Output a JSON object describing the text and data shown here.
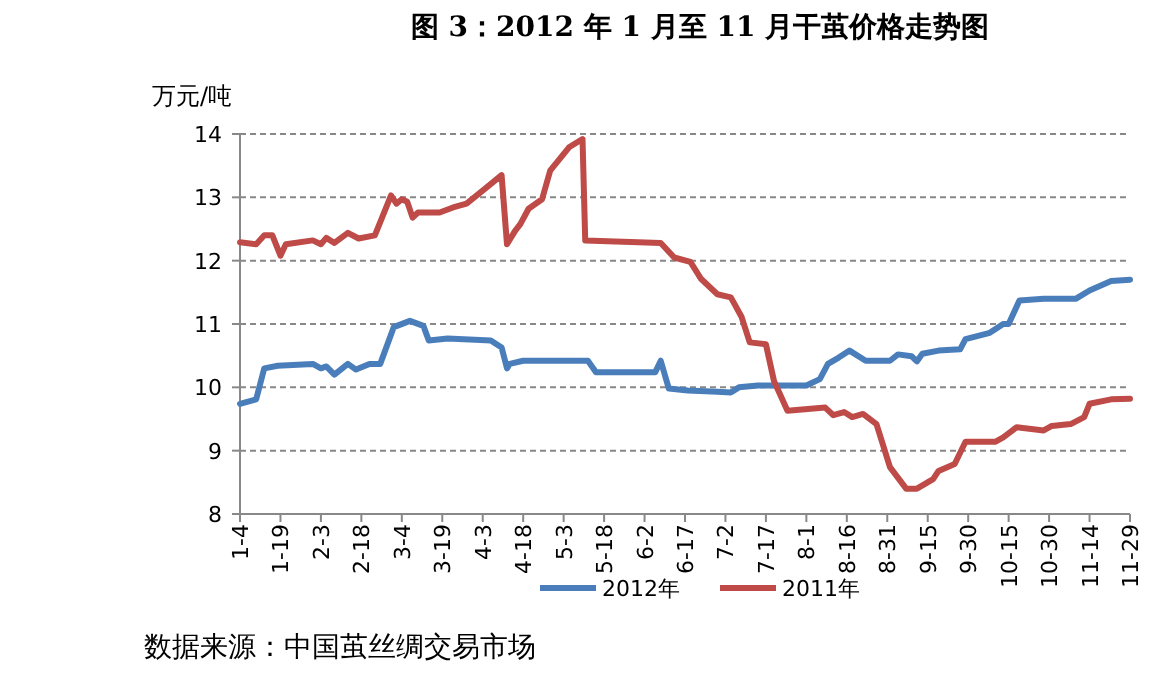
{
  "chart_data": {
    "type": "line",
    "title": "图 3：2012 年 1 月至 11 月干茧价格走势图",
    "ylabel": "万元/吨",
    "annotations": [
      "数据来源：中国茧丝绸交易市场"
    ],
    "xlim": [
      "--01-04",
      "--11-29"
    ],
    "ylim": [
      8,
      14
    ],
    "yticks": [
      8,
      9,
      10,
      11,
      12,
      13,
      14
    ],
    "xticks": [
      {
        "value": "--01-04",
        "label": "1-4"
      },
      {
        "value": "--01-19",
        "label": "1-19"
      },
      {
        "value": "--02-03",
        "label": "2-3"
      },
      {
        "value": "--02-18",
        "label": "2-18"
      },
      {
        "value": "--03-04",
        "label": "3-4"
      },
      {
        "value": "--03-19",
        "label": "3-19"
      },
      {
        "value": "--04-03",
        "label": "4-3"
      },
      {
        "value": "--04-18",
        "label": "4-18"
      },
      {
        "value": "--05-03",
        "label": "5-3"
      },
      {
        "value": "--05-18",
        "label": "5-18"
      },
      {
        "value": "--06-02",
        "label": "6-2"
      },
      {
        "value": "--06-17",
        "label": "6-17"
      },
      {
        "value": "--07-02",
        "label": "7-2"
      },
      {
        "value": "--07-17",
        "label": "7-17"
      },
      {
        "value": "--08-01",
        "label": "8-1"
      },
      {
        "value": "--08-16",
        "label": "8-16"
      },
      {
        "value": "--08-31",
        "label": "8-31"
      },
      {
        "value": "--09-15",
        "label": "9-15"
      },
      {
        "value": "--09-30",
        "label": "9-30"
      },
      {
        "value": "--10-15",
        "label": "10-15"
      },
      {
        "value": "--10-30",
        "label": "10-30"
      },
      {
        "value": "--11-14",
        "label": "11-14"
      },
      {
        "value": "--11-29",
        "label": "11-29"
      }
    ],
    "grid": "y",
    "legend": "bottom",
    "series": [
      {
        "name": "2012年",
        "color": "#4a7ebb",
        "x": [
          "--01-04",
          "--01-10",
          "--01-13",
          "--01-18",
          "--01-31",
          "--02-03",
          "--02-05",
          "--02-08",
          "--02-13",
          "--02-16",
          "--02-21",
          "--02-25",
          "--03-01",
          "--03-07",
          "--03-12",
          "--03-14",
          "--03-21",
          "--04-06",
          "--04-10",
          "--04-12",
          "--04-13",
          "--04-18",
          "--05-12",
          "--05-15",
          "--06-06",
          "--06-08",
          "--06-11",
          "--06-18",
          "--06-29",
          "--07-04",
          "--07-07",
          "--07-14",
          "--08-01",
          "--08-06",
          "--08-09",
          "--08-13",
          "--08-17",
          "--08-23",
          "--09-01",
          "--09-04",
          "--09-09",
          "--09-11",
          "--09-13",
          "--09-19",
          "--09-27",
          "--09-29",
          "--10-08",
          "--10-13",
          "--10-15",
          "--10-19",
          "--10-28",
          "--11-09",
          "--11-14",
          "--11-22",
          "--11-29"
        ],
        "values": [
          9.74,
          9.81,
          10.3,
          10.34,
          10.37,
          10.3,
          10.33,
          10.2,
          10.37,
          10.28,
          10.37,
          10.37,
          10.95,
          11.05,
          10.97,
          10.74,
          10.77,
          10.74,
          10.63,
          10.3,
          10.37,
          10.42,
          10.42,
          10.24,
          10.24,
          10.42,
          9.98,
          9.95,
          9.93,
          9.92,
          10.0,
          10.03,
          10.03,
          10.13,
          10.37,
          10.47,
          10.58,
          10.42,
          10.42,
          10.52,
          10.49,
          10.41,
          10.53,
          10.58,
          10.6,
          10.76,
          10.86,
          11.0,
          11.0,
          11.37,
          11.4,
          11.4,
          11.53,
          11.68,
          11.7
        ]
      },
      {
        "name": "2011年",
        "color": "#be4b48",
        "x": [
          "--01-04",
          "--01-10",
          "--01-13",
          "--01-16",
          "--01-19",
          "--01-21",
          "--01-31",
          "--02-03",
          "--02-05",
          "--02-08",
          "--02-13",
          "--02-17",
          "--02-23",
          "--02-25",
          "--02-29",
          "--03-02",
          "--03-04",
          "--03-06",
          "--03-08",
          "--03-10",
          "--03-18",
          "--03-23",
          "--03-28",
          "--04-04",
          "--04-10",
          "--04-12",
          "--04-15",
          "--04-17",
          "--04-20",
          "--04-25",
          "--04-28",
          "--05-05",
          "--05-10",
          "--05-11",
          "--06-08",
          "--06-13",
          "--06-19",
          "--06-23",
          "--06-29",
          "--07-04",
          "--07-08",
          "--07-11",
          "--07-17",
          "--07-20",
          "--07-25",
          "--08-08",
          "--08-11",
          "--08-15",
          "--08-18",
          "--08-22",
          "--08-27",
          "--09-01",
          "--09-07",
          "--09-11",
          "--09-17",
          "--09-19",
          "--09-25",
          "--09-29",
          "--10-10",
          "--10-13",
          "--10-18",
          "--10-28",
          "--10-31",
          "--11-07",
          "--11-12",
          "--11-14",
          "--11-22",
          "--11-29"
        ],
        "values": [
          12.29,
          12.26,
          12.4,
          12.4,
          12.08,
          12.26,
          12.32,
          12.26,
          12.36,
          12.28,
          12.44,
          12.35,
          12.4,
          12.61,
          13.03,
          12.9,
          12.97,
          12.93,
          12.68,
          12.76,
          12.76,
          12.84,
          12.9,
          13.14,
          13.35,
          12.26,
          12.47,
          12.58,
          12.82,
          12.97,
          13.42,
          13.79,
          13.92,
          12.32,
          12.28,
          12.05,
          11.98,
          11.71,
          11.47,
          11.42,
          11.11,
          10.71,
          10.68,
          10.1,
          9.63,
          9.68,
          9.56,
          9.61,
          9.53,
          9.58,
          9.42,
          8.74,
          8.4,
          8.4,
          8.55,
          8.68,
          8.79,
          9.14,
          9.14,
          9.21,
          9.37,
          9.32,
          9.39,
          9.42,
          9.53,
          9.74,
          9.81,
          9.82
        ]
      }
    ]
  }
}
